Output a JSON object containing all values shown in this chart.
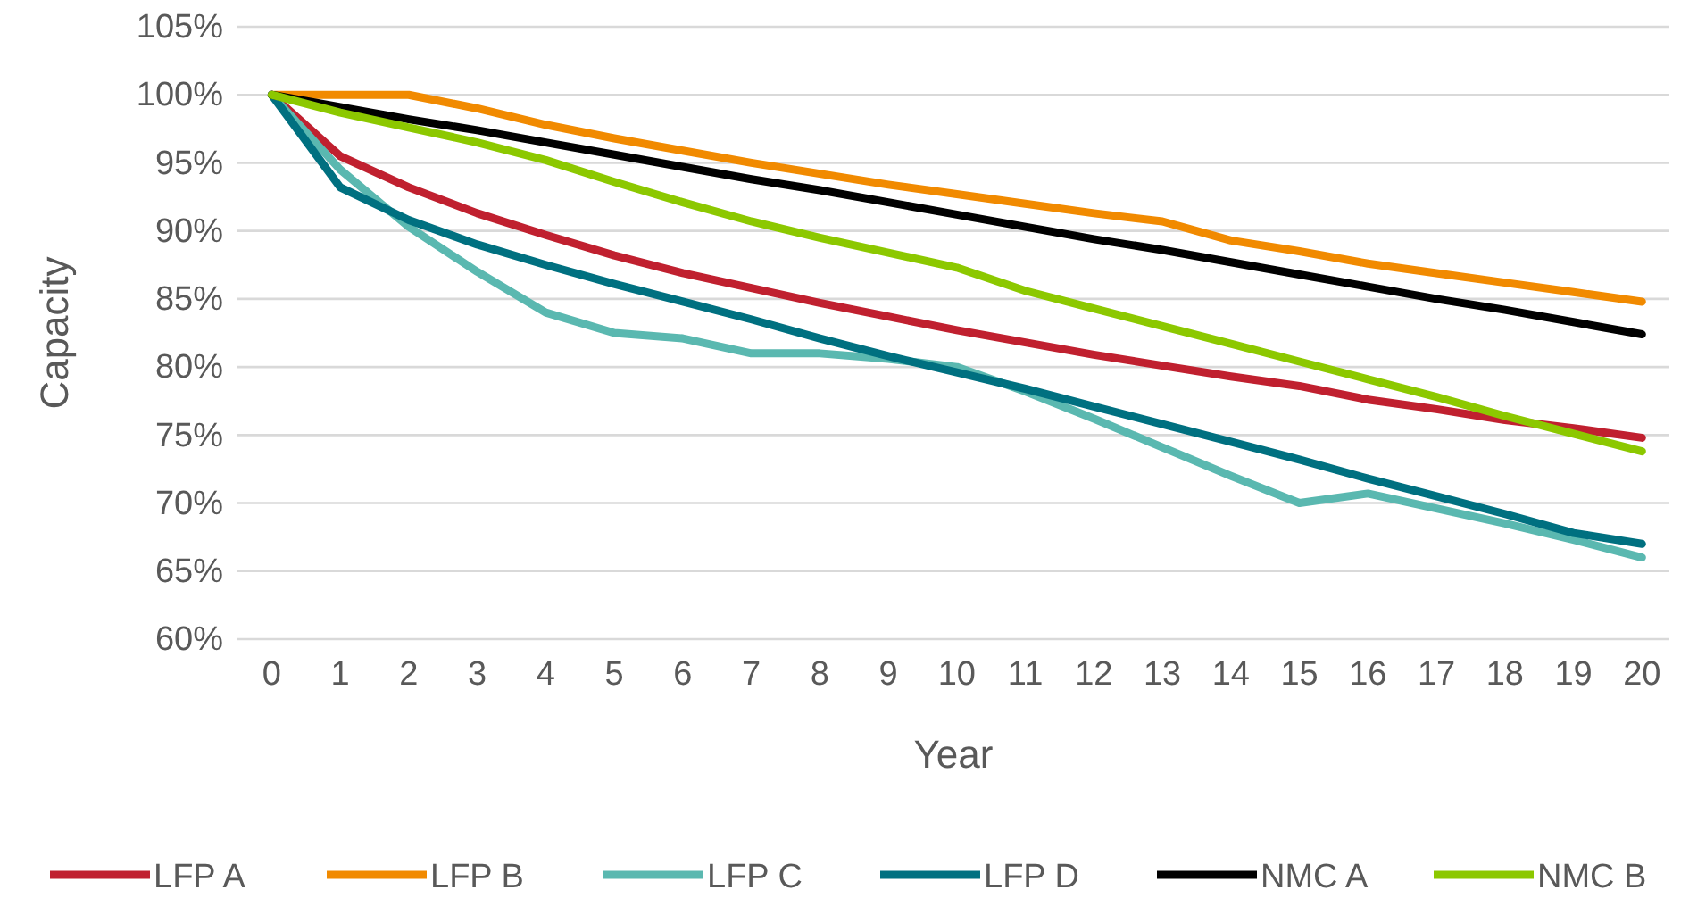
{
  "chart_data": {
    "type": "line",
    "xlabel": "Year",
    "ylabel": "Capacity",
    "x": [
      0,
      1,
      2,
      3,
      4,
      5,
      6,
      7,
      8,
      9,
      10,
      11,
      12,
      13,
      14,
      15,
      16,
      17,
      18,
      19,
      20
    ],
    "xlim": [
      -0.5,
      20.4
    ],
    "xticks": [
      0,
      1,
      2,
      3,
      4,
      5,
      6,
      7,
      8,
      9,
      10,
      11,
      12,
      13,
      14,
      15,
      16,
      17,
      18,
      19,
      20
    ],
    "ylim": [
      60,
      105
    ],
    "yticks": [
      {
        "value": 60,
        "label": "60%"
      },
      {
        "value": 65,
        "label": "65%"
      },
      {
        "value": 70,
        "label": "70%"
      },
      {
        "value": 75,
        "label": "75%"
      },
      {
        "value": 80,
        "label": "80%"
      },
      {
        "value": 85,
        "label": "85%"
      },
      {
        "value": 90,
        "label": "90%"
      },
      {
        "value": 95,
        "label": "95%"
      },
      {
        "value": 100,
        "label": "100%"
      },
      {
        "value": 105,
        "label": "105%"
      }
    ],
    "grid": "y",
    "legend": "bottom",
    "marker": "none",
    "line_style": "solid",
    "series": [
      {
        "name": "LFP A",
        "color": "#c0202f",
        "values": [
          100,
          95.5,
          93.2,
          91.3,
          89.7,
          88.2,
          86.9,
          85.8,
          84.7,
          83.7,
          82.7,
          81.8,
          80.9,
          80.1,
          79.3,
          78.6,
          77.6,
          76.9,
          76.1,
          75.5,
          74.8
        ]
      },
      {
        "name": "LFP B",
        "color": "#f18a00",
        "values": [
          100,
          100,
          100,
          99,
          97.8,
          96.8,
          95.9,
          95,
          94.2,
          93.4,
          92.7,
          92,
          91.3,
          90.7,
          89.3,
          88.5,
          87.6,
          86.9,
          86.2,
          85.5,
          84.8
        ]
      },
      {
        "name": "LFP C",
        "color": "#5ab8b0",
        "values": [
          100,
          94.5,
          90.3,
          87,
          84,
          82.5,
          82.1,
          81,
          81,
          80.6,
          80,
          78.2,
          76.2,
          74.1,
          72,
          70,
          70.7,
          69.6,
          68.5,
          67.3,
          66
        ]
      },
      {
        "name": "LFP D",
        "color": "#007080",
        "values": [
          100,
          93.2,
          90.8,
          89,
          87.5,
          86.1,
          84.8,
          83.5,
          82.1,
          80.8,
          79.6,
          78.4,
          77.1,
          75.8,
          74.5,
          73.2,
          71.8,
          70.5,
          69.2,
          67.8,
          67
        ]
      },
      {
        "name": "NMC A",
        "color": "#000000",
        "values": [
          100,
          99.1,
          98.2,
          97.4,
          96.5,
          95.6,
          94.7,
          93.8,
          93,
          92.1,
          91.2,
          90.3,
          89.4,
          88.6,
          87.7,
          86.8,
          85.9,
          85,
          84.2,
          83.3,
          82.4
        ]
      },
      {
        "name": "NMC B",
        "color": "#8cc800",
        "values": [
          100,
          98.7,
          97.6,
          96.5,
          95.2,
          93.6,
          92.1,
          90.7,
          89.5,
          88.4,
          87.3,
          85.6,
          84.3,
          83,
          81.7,
          80.4,
          79.1,
          77.8,
          76.4,
          75.1,
          73.8
        ]
      }
    ]
  }
}
